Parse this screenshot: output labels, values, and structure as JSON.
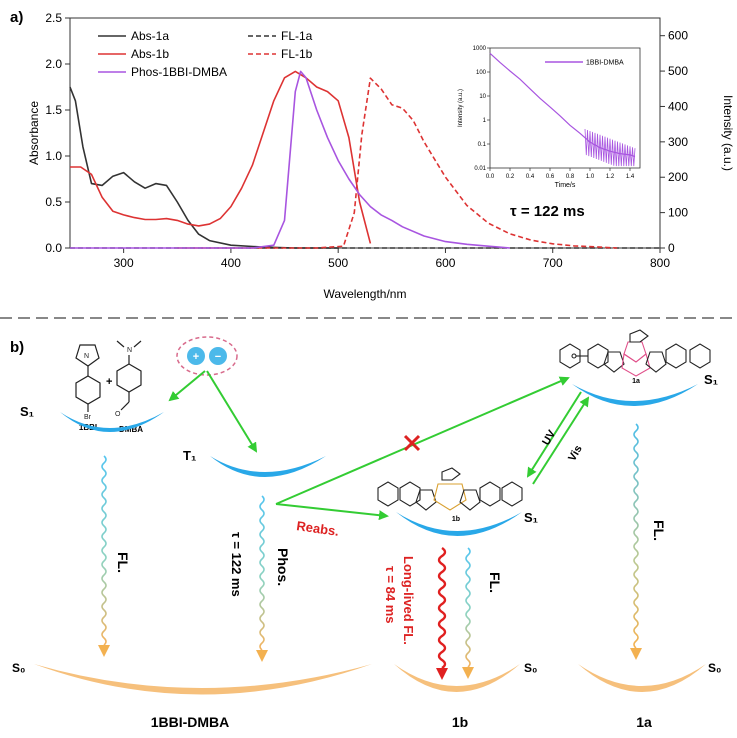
{
  "panel_a": {
    "label": "a)",
    "inset_tau": "τ = 122 ms"
  },
  "panel_b": {
    "label": "b)",
    "molecules": {
      "donor": "1BBI",
      "acceptor": "DMBA",
      "plus": "+",
      "closed": "1a",
      "open": "1b"
    },
    "states": {
      "s1": "S₁",
      "t1": "T₁",
      "s0": "S₀"
    },
    "processes": {
      "fl_donor": "FL.",
      "phos": "Phos.",
      "phos_tau": "τ = 122 ms",
      "reabs": "Reabs.",
      "uv": "UV",
      "vis": "Vis",
      "long_fl": "Long-lived FL.",
      "long_tau": "τ = 84 ms",
      "fl_1b": "FL.",
      "fl_1a": "FL."
    },
    "bottom_labels": {
      "system": "1BBI-DMBA",
      "b": "1b",
      "a": "1a"
    },
    "colors": {
      "green": "#33cc33",
      "red": "#dd2222",
      "blue_state": "#29a8e8",
      "orange_state": "#f6c07c"
    }
  },
  "chart_data": [
    {
      "type": "line",
      "title": "",
      "xlabel": "Wavelength/nm",
      "ylabel": "Absorbance",
      "y2label": "Intensity (a.u.)",
      "xlim": [
        250,
        800
      ],
      "ylim": [
        0,
        2.5
      ],
      "y2lim": [
        0,
        650
      ],
      "xticks": [
        300,
        400,
        500,
        600,
        700,
        800
      ],
      "yticks": [
        0.0,
        0.5,
        1.0,
        1.5,
        2.0,
        2.5
      ],
      "y2ticks": [
        0,
        100,
        200,
        300,
        400,
        500,
        600
      ],
      "legend_position": "top-left",
      "series": [
        {
          "name": "Abs-1a",
          "axis": "left",
          "style": "solid",
          "color": "#333333",
          "x": [
            250,
            255,
            262,
            270,
            280,
            290,
            300,
            310,
            320,
            330,
            340,
            350,
            360,
            370,
            380,
            400,
            430,
            460,
            500
          ],
          "y": [
            1.75,
            1.6,
            1.1,
            0.7,
            0.68,
            0.78,
            0.82,
            0.72,
            0.65,
            0.7,
            0.68,
            0.5,
            0.3,
            0.15,
            0.08,
            0.03,
            0.01,
            0.0,
            0.0
          ]
        },
        {
          "name": "FL-1a",
          "axis": "right",
          "style": "dashed",
          "color": "#333333",
          "x": [
            250,
            800
          ],
          "y": [
            0,
            0
          ]
        },
        {
          "name": "Abs-1b",
          "axis": "left",
          "style": "solid",
          "color": "#dd3333",
          "x": [
            250,
            260,
            270,
            280,
            290,
            300,
            310,
            320,
            330,
            340,
            350,
            360,
            370,
            380,
            390,
            400,
            410,
            420,
            430,
            440,
            450,
            460,
            470,
            480,
            490,
            500,
            510,
            520,
            530
          ],
          "y": [
            0.88,
            0.88,
            0.8,
            0.55,
            0.4,
            0.36,
            0.33,
            0.31,
            0.31,
            0.32,
            0.3,
            0.26,
            0.24,
            0.26,
            0.32,
            0.45,
            0.65,
            0.9,
            1.25,
            1.6,
            1.85,
            1.92,
            1.85,
            1.75,
            1.7,
            1.6,
            1.2,
            0.5,
            0.05
          ]
        },
        {
          "name": "FL-1b",
          "axis": "right",
          "style": "dashed",
          "color": "#dd3333",
          "x": [
            350,
            480,
            505,
            515,
            522,
            530,
            540,
            550,
            560,
            570,
            580,
            600,
            620,
            640,
            660,
            680,
            700,
            720,
            740,
            760
          ],
          "y": [
            0,
            0,
            5,
            100,
            320,
            480,
            450,
            405,
            395,
            360,
            300,
            200,
            120,
            70,
            40,
            22,
            12,
            6,
            3,
            0
          ]
        },
        {
          "name": "Phos-1BBI-DMBA",
          "axis": "left",
          "style": "solid",
          "color": "#a855e0",
          "x": [
            250,
            380,
            420,
            440,
            450,
            455,
            460,
            465,
            470,
            480,
            490,
            500,
            510,
            520,
            530,
            540,
            550,
            560,
            580,
            600,
            620,
            640,
            660
          ],
          "y": [
            0,
            0,
            0,
            0.03,
            0.3,
            1.0,
            1.7,
            1.92,
            1.85,
            1.5,
            1.2,
            0.95,
            0.75,
            0.58,
            0.45,
            0.36,
            0.3,
            0.23,
            0.13,
            0.07,
            0.04,
            0.02,
            0.0
          ]
        }
      ]
    },
    {
      "type": "line",
      "title": "",
      "xlabel": "Time/s",
      "ylabel": "Intensity (a.u.)",
      "yscale": "log",
      "xlim": [
        0,
        1.5
      ],
      "ylim": [
        0.01,
        1000
      ],
      "xticks": [
        "0.0",
        "0.2",
        "0.4",
        "0.6",
        "0.8",
        "1.0",
        "1.2",
        "1.4"
      ],
      "yticks": [
        "0.01",
        "0.1",
        "1",
        "10",
        "100",
        "1000"
      ],
      "legend_position": "top-right",
      "series": [
        {
          "name": "1BBI-DMBA",
          "color": "#a855e0",
          "x": [
            0.0,
            0.1,
            0.2,
            0.3,
            0.4,
            0.5,
            0.6,
            0.7,
            0.8,
            0.9,
            1.0,
            1.1,
            1.2,
            1.3,
            1.4,
            1.45
          ],
          "y": [
            600,
            250,
            110,
            50,
            20,
            8,
            3.5,
            1.5,
            0.6,
            0.28,
            0.12,
            0.07,
            0.05,
            0.04,
            0.035,
            0.03
          ]
        }
      ]
    }
  ]
}
